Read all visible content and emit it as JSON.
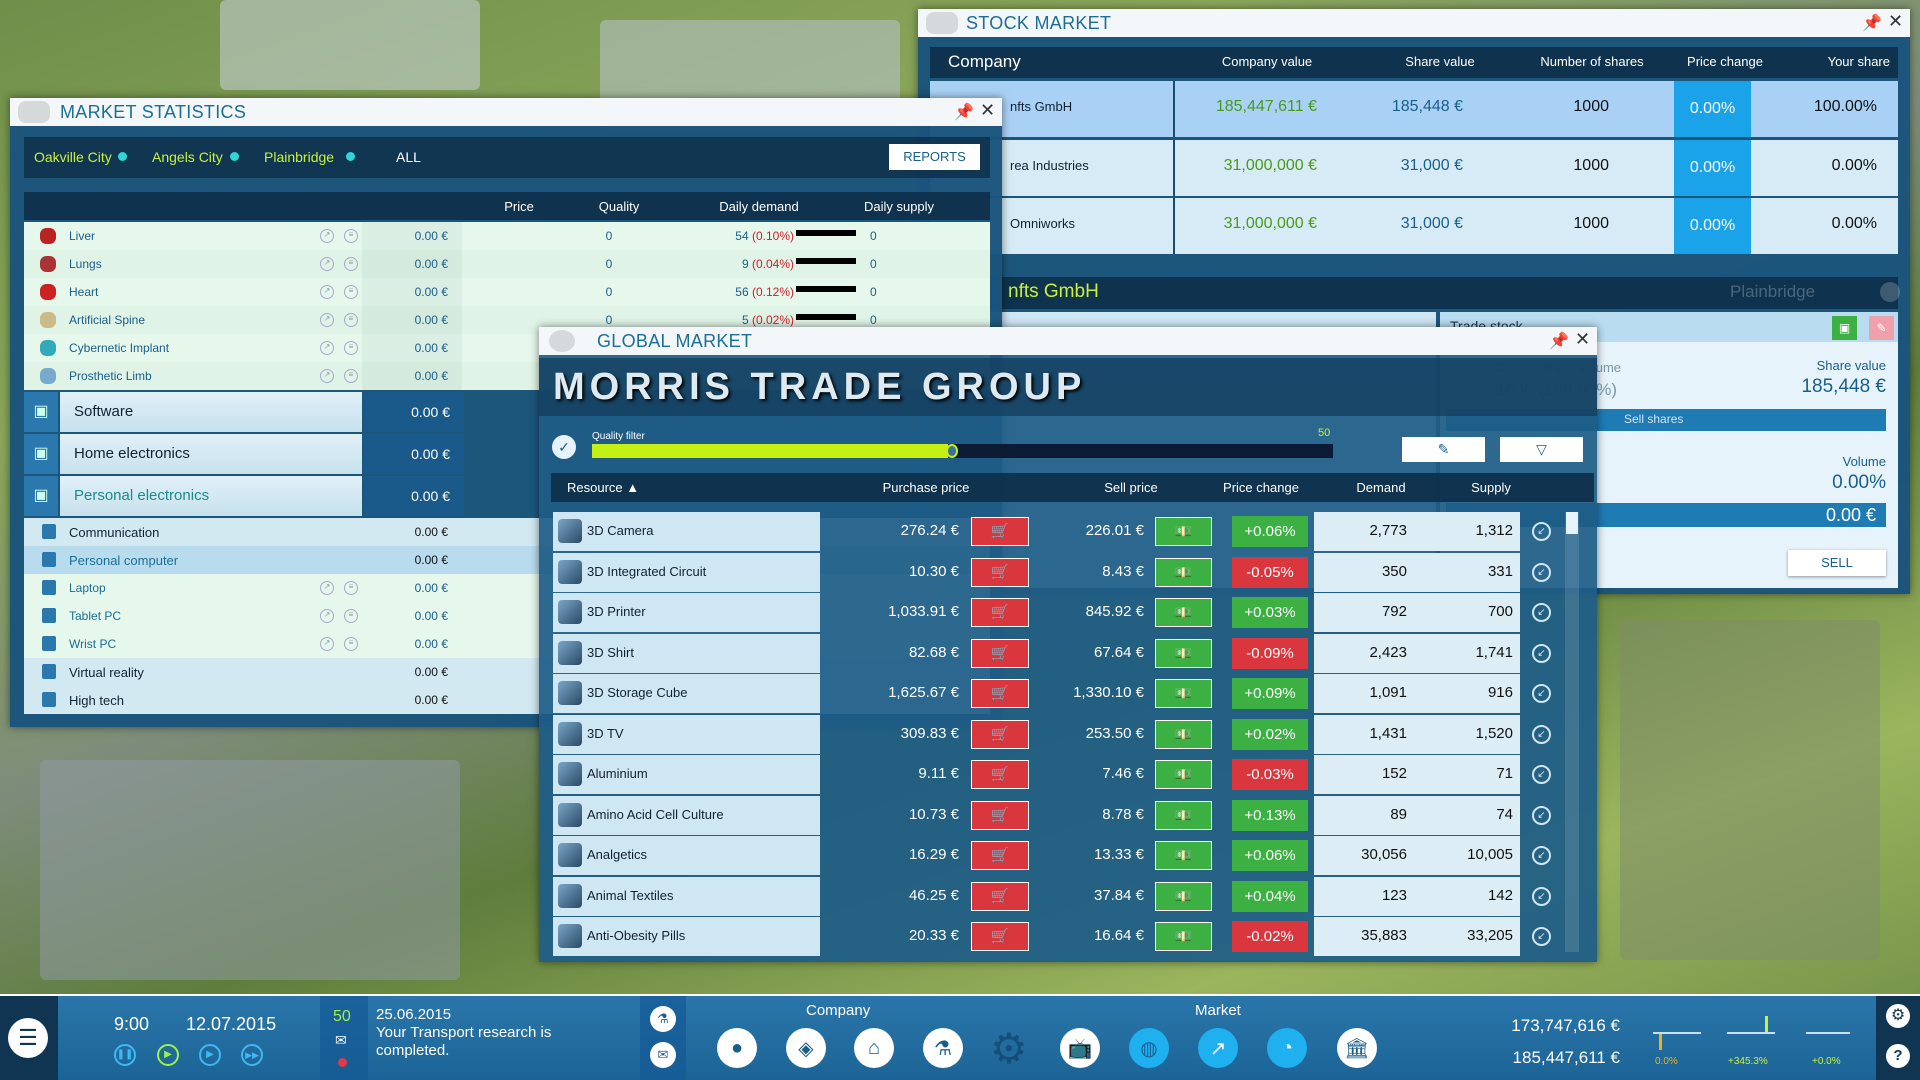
{
  "market_statistics": {
    "title": "MARKET STATISTICS",
    "cities": [
      "Oakville City",
      "Angels City",
      "Plainbridge",
      "ALL"
    ],
    "reports_label": "REPORTS",
    "columns": {
      "price": "Price",
      "quality": "Quality",
      "daily_demand": "Daily demand",
      "daily_supply": "Daily supply"
    },
    "items": [
      {
        "name": "Liver",
        "price": "0.00 €",
        "quality": "0",
        "demand": "54",
        "demand_pct": "(0.10%)",
        "supply": "0",
        "icon": "liver-icon",
        "color": "#b22"
      },
      {
        "name": "Lungs",
        "price": "0.00 €",
        "quality": "0",
        "demand": "9",
        "demand_pct": "(0.04%)",
        "supply": "0",
        "icon": "lungs-icon",
        "color": "#a33"
      },
      {
        "name": "Heart",
        "price": "0.00 €",
        "quality": "0",
        "demand": "56",
        "demand_pct": "(0.12%)",
        "supply": "0",
        "icon": "heart-icon",
        "color": "#c22"
      },
      {
        "name": "Artificial Spine",
        "price": "0.00 €",
        "quality": "0",
        "demand": "5",
        "demand_pct": "(0.02%)",
        "supply": "0",
        "icon": "spine-icon",
        "color": "#cb8"
      },
      {
        "name": "Cybernetic Implant",
        "price": "0.00 €",
        "icon": "implant-icon",
        "color": "#3ab"
      },
      {
        "name": "Prosthetic Limb",
        "price": "0.00 €",
        "icon": "limb-icon",
        "color": "#7ac"
      }
    ],
    "categories": [
      {
        "name": "Software",
        "price": "0.00 €",
        "icon": "software-icon"
      },
      {
        "name": "Home electronics",
        "price": "0.00 €",
        "icon": "home-electronics-icon"
      },
      {
        "name": "Personal electronics",
        "price": "0.00 €",
        "icon": "personal-electronics-icon"
      }
    ],
    "subitems": [
      {
        "name": "Communication",
        "price": "0.00 €",
        "type": "subcategory"
      },
      {
        "name": "Personal computer",
        "price": "0.00 €",
        "type": "subcategory",
        "selected": true
      },
      {
        "name": "Laptop",
        "price": "0.00 €",
        "type": "item"
      },
      {
        "name": "Tablet PC",
        "price": "0.00 €",
        "type": "item"
      },
      {
        "name": "Wrist PC",
        "price": "0.00 €",
        "type": "item"
      },
      {
        "name": "Virtual reality",
        "price": "0.00 €",
        "type": "subcategory"
      },
      {
        "name": "High tech",
        "price": "0.00 €",
        "type": "subcategory"
      }
    ]
  },
  "stock_market": {
    "title": "STOCK MARKET",
    "columns": [
      "Company",
      "Company value",
      "Share value",
      "Number of shares",
      "Price change",
      "Your share"
    ],
    "rows": [
      {
        "company": "nfts GmbH",
        "company_value": "185,447,611 €",
        "share_value": "185,448 €",
        "shares": "1000",
        "price_change": "0.00%",
        "your_share": "100.00%",
        "selected": true
      },
      {
        "company": "rea Industries",
        "company_value": "31,000,000 €",
        "share_value": "31,000 €",
        "shares": "1000",
        "price_change": "0.00%",
        "your_share": "0.00%"
      },
      {
        "company": "Omniworks",
        "company_value": "31,000,000 €",
        "share_value": "31,000 €",
        "shares": "1000",
        "price_change": "0.00%",
        "your_share": "0.00%"
      }
    ],
    "section_title": "nfts GmbH",
    "section_city": "Plainbridge",
    "trade": {
      "title": "Trade stock",
      "current_volume_label": "Current share volume",
      "current_volume": "1000 (100.00%)",
      "sell_shares_label": "Sell shares",
      "share_value_label": "Share value",
      "share_value": "185,448 €",
      "volume_label": "Volume",
      "volume": "0.00%",
      "amount": "0.00 €",
      "sell_label": "SELL"
    }
  },
  "global_market": {
    "title": "GLOBAL MARKET",
    "brand": "MORRIS TRADE GROUP",
    "quality_filter_label": "Quality filter",
    "quality_filter_max": "50",
    "quality_filter_fill": 0.48,
    "columns": {
      "resource": "Resource ▲",
      "purchase": "Purchase price",
      "sell": "Sell price",
      "change": "Price change",
      "demand": "Demand",
      "supply": "Supply"
    },
    "rows": [
      {
        "name": "3D Camera",
        "purchase": "276.24 €",
        "sell": "226.01 €",
        "change": "+0.06%",
        "demand": "2,773",
        "supply": "1,312"
      },
      {
        "name": "3D Integrated Circuit",
        "purchase": "10.30 €",
        "sell": "8.43 €",
        "change": "-0.05%",
        "demand": "350",
        "supply": "331"
      },
      {
        "name": "3D Printer",
        "purchase": "1,033.91 €",
        "sell": "845.92 €",
        "change": "+0.03%",
        "demand": "792",
        "supply": "700"
      },
      {
        "name": "3D Shirt",
        "purchase": "82.68 €",
        "sell": "67.64 €",
        "change": "-0.09%",
        "demand": "2,423",
        "supply": "1,741"
      },
      {
        "name": "3D Storage Cube",
        "purchase": "1,625.67 €",
        "sell": "1,330.10 €",
        "change": "+0.09%",
        "demand": "1,091",
        "supply": "916"
      },
      {
        "name": "3D TV",
        "purchase": "309.83 €",
        "sell": "253.50 €",
        "change": "+0.02%",
        "demand": "1,431",
        "supply": "1,520"
      },
      {
        "name": "Aluminium",
        "purchase": "9.11 €",
        "sell": "7.46 €",
        "change": "-0.03%",
        "demand": "152",
        "supply": "71"
      },
      {
        "name": "Amino Acid Cell Culture",
        "purchase": "10.73 €",
        "sell": "8.78 €",
        "change": "+0.13%",
        "demand": "89",
        "supply": "74"
      },
      {
        "name": "Analgetics",
        "purchase": "16.29 €",
        "sell": "13.33 €",
        "change": "+0.06%",
        "demand": "30,056",
        "supply": "10,005"
      },
      {
        "name": "Animal Textiles",
        "purchase": "46.25 €",
        "sell": "37.84 €",
        "change": "+0.04%",
        "demand": "123",
        "supply": "142"
      },
      {
        "name": "Anti-Obesity Pills",
        "purchase": "20.33 €",
        "sell": "16.64 €",
        "change": "-0.02%",
        "demand": "35,883",
        "supply": "33,205"
      }
    ]
  },
  "bottom_bar": {
    "time": "9:00",
    "date": "12.07.2015",
    "message_count": "50",
    "message_date": "25.06.2015",
    "message_text": "Your Transport research is completed.",
    "company_label": "Company",
    "market_label": "Market",
    "money": "173,747,616 €",
    "company_value": "185,447,611 €",
    "trends": [
      "0.0%",
      "+345.3%",
      "+0.0%"
    ]
  },
  "colors": {
    "accent": "#1b6f96",
    "positive": "#3cb043",
    "negative": "#d9363e",
    "city_tab": "#c8f03c",
    "highlight": "#1aa3e8"
  }
}
